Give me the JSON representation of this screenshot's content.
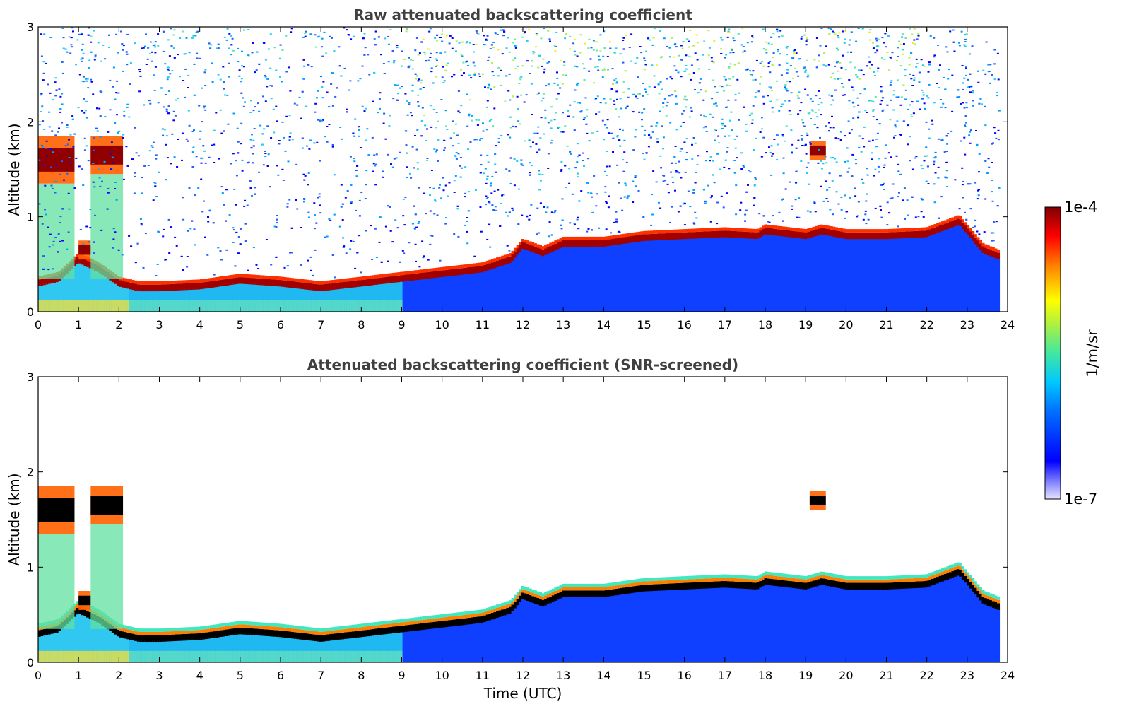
{
  "chart_data": [
    {
      "type": "heatmap",
      "title": "Raw attenuated backscattering coefficient",
      "xlabel": "",
      "ylabel": "Altitude (km)",
      "xlim": [
        0,
        24
      ],
      "ylim": [
        0,
        3
      ],
      "x_ticks": [
        "0",
        "1",
        "2",
        "3",
        "4",
        "5",
        "6",
        "7",
        "8",
        "9",
        "10",
        "11",
        "12",
        "13",
        "14",
        "15",
        "16",
        "17",
        "18",
        "19",
        "20",
        "21",
        "22",
        "23",
        "24"
      ],
      "y_ticks": [
        "0",
        "1",
        "2",
        "3"
      ],
      "data_end_hour": 23.8,
      "layers": {
        "aerosol_layer_top_km": {
          "hours": [
            0,
            0.5,
            1,
            1.5,
            2,
            2.5,
            3,
            4,
            5,
            6,
            7,
            8,
            9,
            10,
            11,
            11.7,
            12,
            12.5,
            13,
            14,
            15,
            16,
            17,
            17.8,
            18,
            19,
            19.4,
            20,
            21,
            22,
            22.8,
            23,
            23.4,
            23.8
          ],
          "values": [
            0.3,
            0.35,
            0.55,
            0.45,
            0.3,
            0.25,
            0.25,
            0.27,
            0.33,
            0.3,
            0.25,
            0.3,
            0.35,
            0.4,
            0.45,
            0.55,
            0.7,
            0.62,
            0.72,
            0.72,
            0.78,
            0.8,
            0.82,
            0.8,
            0.85,
            0.8,
            0.85,
            0.8,
            0.8,
            0.82,
            0.95,
            0.85,
            0.65,
            0.58
          ]
        },
        "cloud_layers_km": [
          {
            "start": 0.0,
            "end": 0.9,
            "base": 1.35,
            "top": 1.85
          },
          {
            "start": 1.0,
            "end": 1.3,
            "base": 0.55,
            "top": 0.75
          },
          {
            "start": 1.3,
            "end": 2.1,
            "base": 1.45,
            "top": 1.85
          },
          {
            "start": 19.1,
            "end": 19.5,
            "base": 1.6,
            "top": 1.8
          }
        ]
      },
      "colorbar": {
        "min_label": "1e-7",
        "max_label": "1e-4",
        "label": "1/m/sr",
        "scale": "log"
      }
    },
    {
      "type": "heatmap",
      "title": "Attenuated backscattering coefficient (SNR-screened)",
      "xlabel": "Time (UTC)",
      "ylabel": "Altitude (km)",
      "xlim": [
        0,
        24
      ],
      "ylim": [
        0,
        3
      ],
      "x_ticks": [
        "0",
        "1",
        "2",
        "3",
        "4",
        "5",
        "6",
        "7",
        "8",
        "9",
        "10",
        "11",
        "12",
        "13",
        "14",
        "15",
        "16",
        "17",
        "18",
        "19",
        "20",
        "21",
        "22",
        "23",
        "24"
      ],
      "y_ticks": [
        "0",
        "1",
        "2",
        "3"
      ],
      "data_end_hour": 23.8,
      "colorbar_shared": true
    }
  ]
}
